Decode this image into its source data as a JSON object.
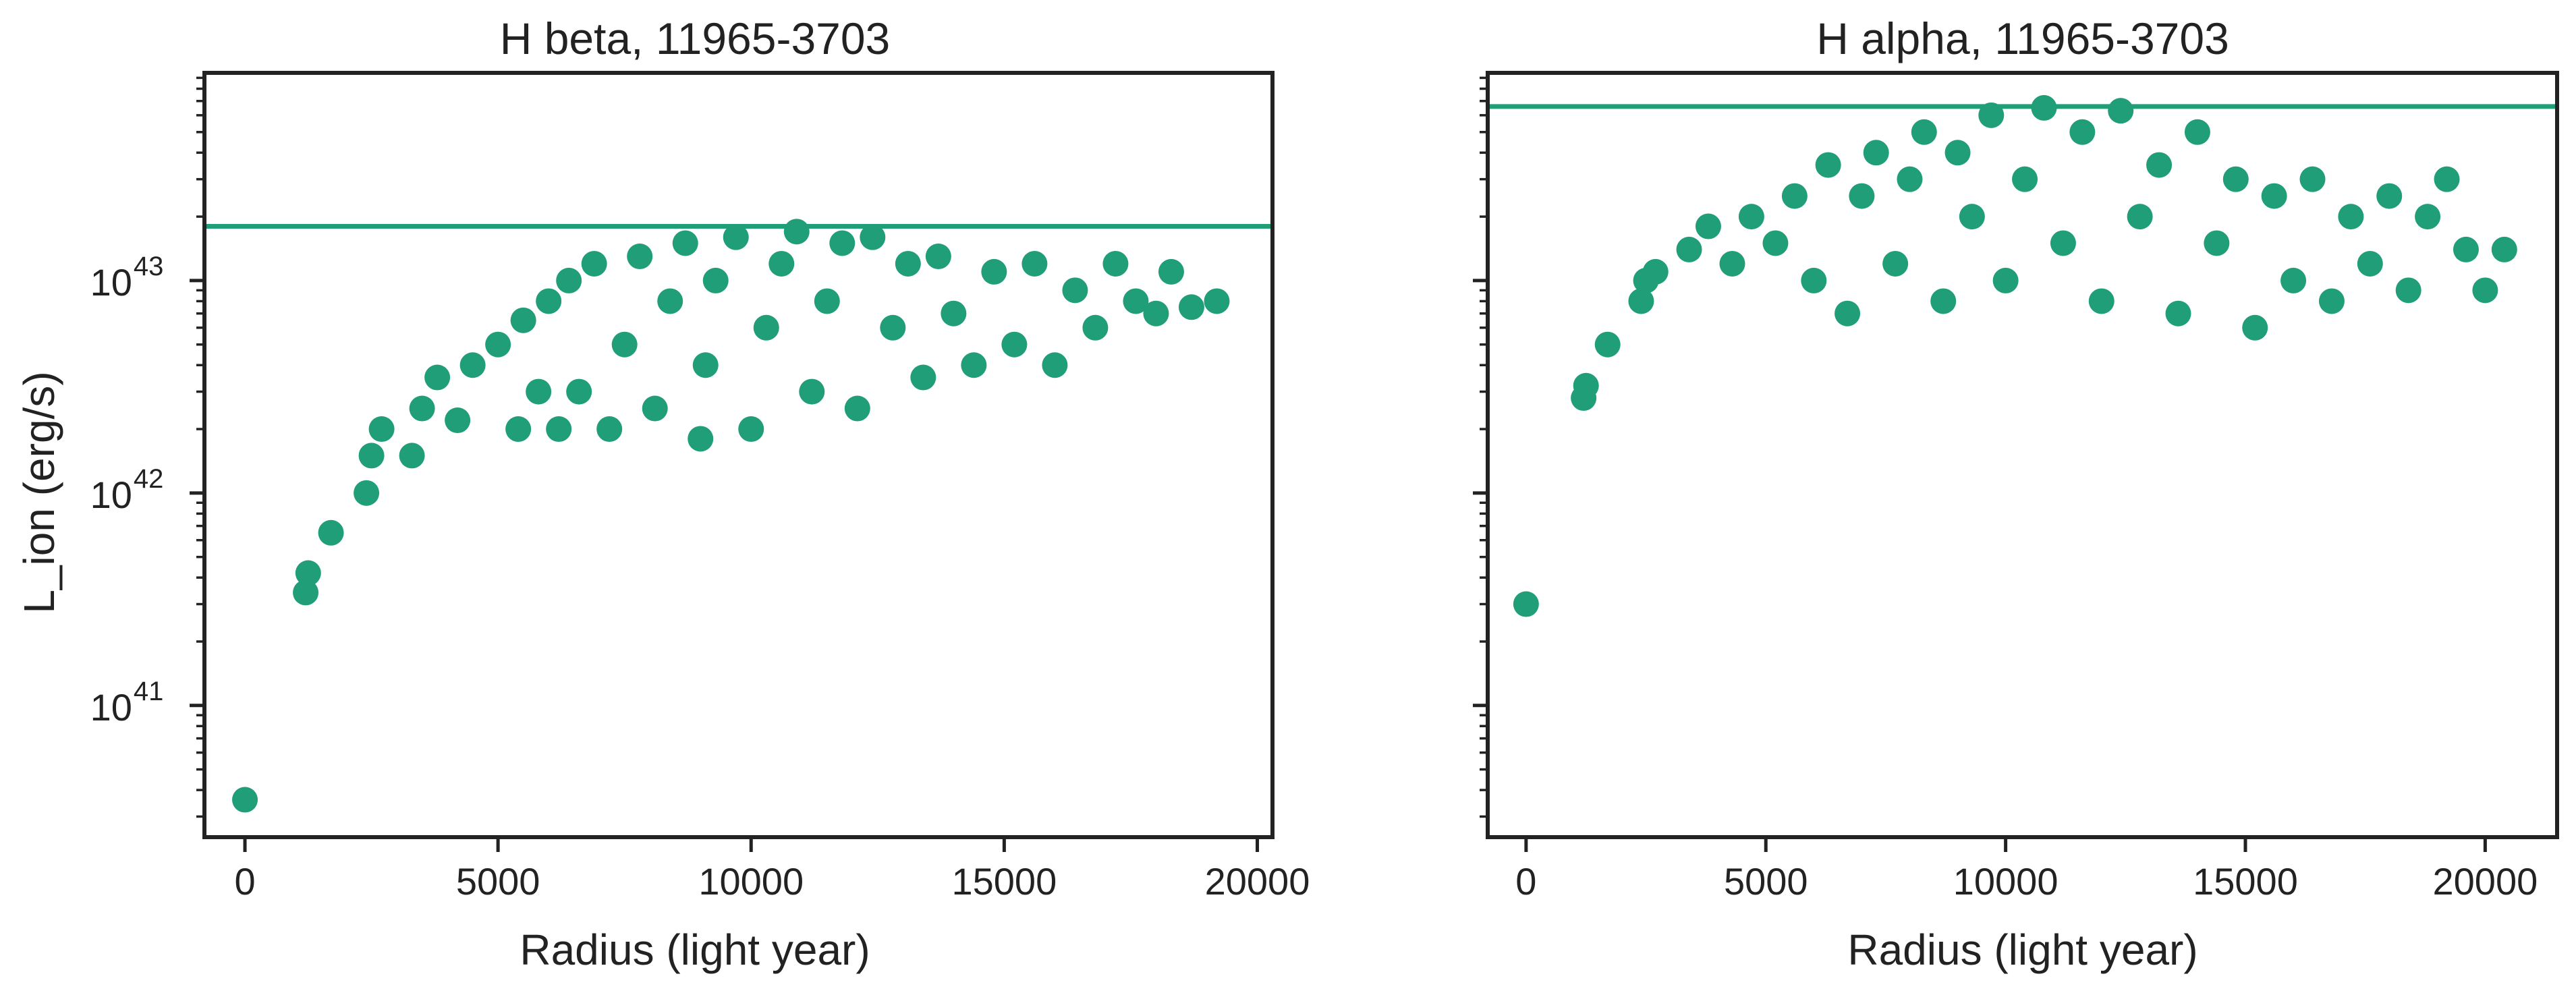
{
  "chart_data": [
    {
      "type": "scatter",
      "title": "H beta, 11965-3703",
      "xlabel": "Radius (light year)",
      "ylabel": "L_ion (erg/s)",
      "yscale": "log",
      "xlim": [
        -800,
        20300
      ],
      "ylim": [
        2.4e+40,
        9.5e+43
      ],
      "xticks": [
        "0",
        "5000",
        "10000",
        "15000",
        "20000"
      ],
      "xtick_values": [
        0,
        5000,
        10000,
        15000,
        20000
      ],
      "yticks": [
        {
          "base": "10",
          "exp": "41",
          "value": 1e+41
        },
        {
          "base": "10",
          "exp": "42",
          "value": 1e+42
        },
        {
          "base": "10",
          "exp": "43",
          "value": 1e+43
        }
      ],
      "grid": false,
      "marker_color": "#1f9e77",
      "hline": {
        "value": 1.8e+43,
        "color": "#1f9e77"
      },
      "series": [
        {
          "x": [
            0,
            1200,
            1250,
            1700,
            2400,
            2500,
            2700,
            3300,
            3500,
            3800,
            4200,
            4500,
            5000,
            5400,
            5500,
            5800,
            6000,
            6200,
            6400,
            6600,
            6900,
            7200,
            7500,
            7800,
            8100,
            8400,
            8700,
            9000,
            9100,
            9300,
            9700,
            10000,
            10300,
            10600,
            10900,
            11200,
            11500,
            11800,
            12100,
            12400,
            12800,
            13100,
            13400,
            13700,
            14000,
            14400,
            14800,
            15200,
            15600,
            16000,
            16400,
            16800,
            17200,
            17600,
            18000,
            18300,
            18700,
            19200
          ],
          "y": [
            3.6e+40,
            3.4e+41,
            4.2e+41,
            6.5e+41,
            1e+42,
            1.5e+42,
            2e+42,
            1.5e+42,
            2.5e+42,
            3.5e+42,
            2.2e+42,
            4e+42,
            5e+42,
            2e+42,
            6.5e+42,
            3e+42,
            8e+42,
            2e+42,
            1e+43,
            3e+42,
            1.2e+43,
            2e+42,
            5e+42,
            1.3e+43,
            2.5e+42,
            8e+42,
            1.5e+43,
            1.8e+42,
            4e+42,
            1e+43,
            1.6e+43,
            2e+42,
            6e+42,
            1.2e+43,
            1.7e+43,
            3e+42,
            8e+42,
            1.5e+43,
            2.5e+42,
            1.6e+43,
            6e+42,
            1.2e+43,
            3.5e+42,
            1.3e+43,
            7e+42,
            4e+42,
            1.1e+43,
            5e+42,
            1.2e+43,
            4e+42,
            9e+42,
            6e+42,
            1.2e+43,
            8e+42,
            7e+42,
            1.1e+43,
            7.5e+42,
            8e+42
          ]
        }
      ]
    },
    {
      "type": "scatter",
      "title": "H alpha, 11965-3703",
      "xlabel": "Radius (light year)",
      "ylabel": "",
      "yscale": "log",
      "xlim": [
        -800,
        21500
      ],
      "ylim": [
        2.4e+40,
        9.5e+43
      ],
      "xticks": [
        "0",
        "5000",
        "10000",
        "15000",
        "20000"
      ],
      "xtick_values": [
        0,
        5000,
        10000,
        15000,
        20000
      ],
      "yticks": [],
      "grid": false,
      "marker_color": "#1f9e77",
      "hline": {
        "value": 6.6e+43,
        "color": "#1f9e77"
      },
      "series": [
        {
          "x": [
            0,
            1200,
            1250,
            1700,
            2400,
            2500,
            2700,
            3400,
            3800,
            4300,
            4700,
            5200,
            5600,
            6000,
            6300,
            6700,
            7000,
            7300,
            7700,
            8000,
            8300,
            8700,
            9000,
            9300,
            9700,
            10000,
            10400,
            10800,
            11200,
            11600,
            12000,
            12400,
            12800,
            13200,
            13600,
            14000,
            14400,
            14800,
            15200,
            15600,
            16000,
            16400,
            16800,
            17200,
            17600,
            18000,
            18400,
            18800,
            19200,
            19600,
            20000,
            20400
          ],
          "y": [
            3e+41,
            2.8e+42,
            3.2e+42,
            5e+42,
            8e+42,
            1e+43,
            1.1e+43,
            1.4e+43,
            1.8e+43,
            1.2e+43,
            2e+43,
            1.5e+43,
            2.5e+43,
            1e+43,
            3.5e+43,
            7e+42,
            2.5e+43,
            4e+43,
            1.2e+43,
            3e+43,
            5e+43,
            8e+42,
            4e+43,
            2e+43,
            6e+43,
            1e+43,
            3e+43,
            6.5e+43,
            1.5e+43,
            5e+43,
            8e+42,
            6.3e+43,
            2e+43,
            3.5e+43,
            7e+42,
            5e+43,
            1.5e+43,
            3e+43,
            6e+42,
            2.5e+43,
            1e+43,
            3e+43,
            8e+42,
            2e+43,
            1.2e+43,
            2.5e+43,
            9e+42,
            2e+43,
            3e+43,
            1.4e+43,
            9e+42,
            1.4e+43
          ]
        }
      ]
    }
  ]
}
